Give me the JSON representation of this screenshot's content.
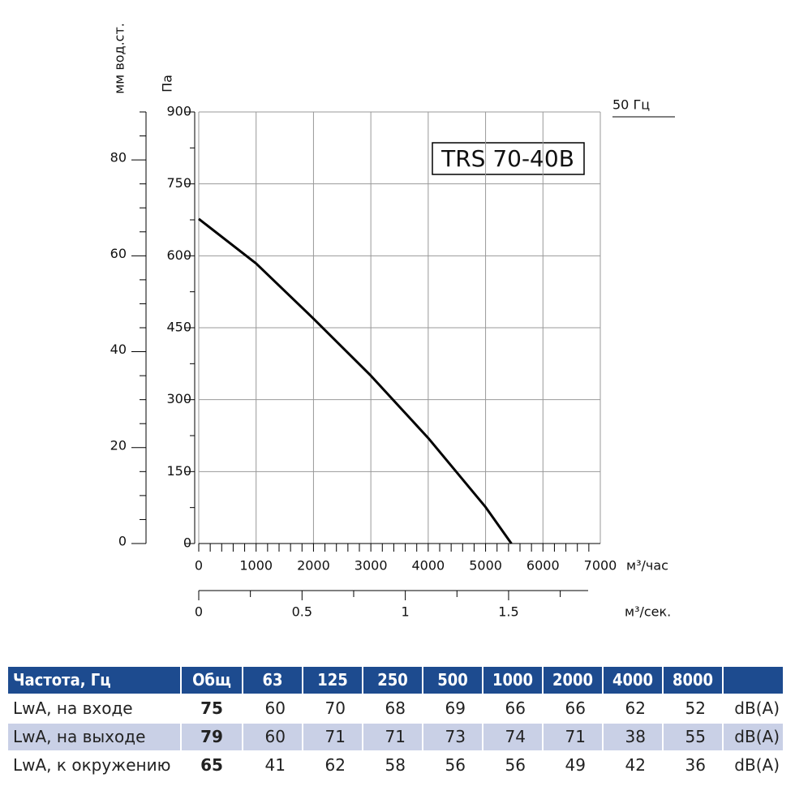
{
  "chart_data": {
    "type": "line",
    "annotation": "TRS 70-40B",
    "frequency_label": "50 Гц",
    "xlabel": "м³/час",
    "ylabel": "Па",
    "y2label": "мм вод.ст.",
    "x2label": "м³/сек.",
    "x": [
      0,
      1000,
      2000,
      3000,
      4000,
      5000,
      5450
    ],
    "series": [
      {
        "name": "TRS 70-40B",
        "color": "#000000",
        "values": [
          677,
          584,
          469,
          350,
          220,
          76,
          0
        ]
      }
    ],
    "xlim": [
      0,
      7000
    ],
    "xticks": [
      0,
      1000,
      2000,
      3000,
      4000,
      5000,
      6000,
      7000
    ],
    "ylim": [
      0,
      900
    ],
    "yticks": [
      0,
      150,
      300,
      450,
      600,
      750,
      900
    ],
    "y2lim": [
      0,
      90
    ],
    "y2ticks": [
      0,
      20,
      40,
      60,
      80
    ],
    "x2lim": [
      0,
      1.944
    ],
    "x2ticks": [
      0,
      0.5,
      1,
      1.5
    ],
    "grid": true
  },
  "table": {
    "header": [
      "Частота, Гц",
      "Общ",
      "63",
      "125",
      "250",
      "500",
      "1000",
      "2000",
      "4000",
      "8000"
    ],
    "rows": [
      [
        "LwA, на входе",
        "75",
        "60",
        "70",
        "68",
        "69",
        "66",
        "66",
        "62",
        "52",
        "dB(A)"
      ],
      [
        "LwA, на выходе",
        "79",
        "60",
        "71",
        "71",
        "73",
        "74",
        "71",
        "38",
        "55",
        "dB(A)"
      ],
      [
        "LwA, к окружению",
        "65",
        "41",
        "62",
        "58",
        "56",
        "56",
        "49",
        "42",
        "36",
        "dB(A)"
      ]
    ]
  }
}
